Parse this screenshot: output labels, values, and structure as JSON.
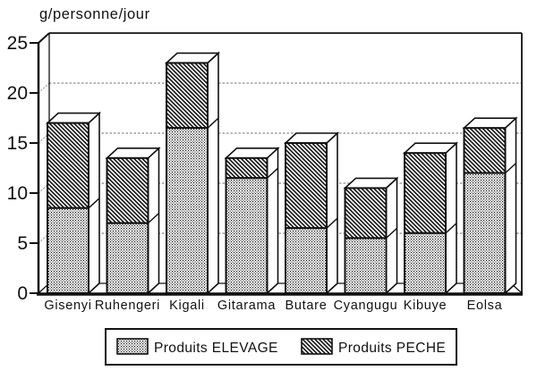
{
  "chart_data": {
    "type": "bar",
    "stacked": true,
    "style": "monochrome pseudo-3D stacked bars (scanned print)",
    "title": "g/personne/jour",
    "ylabel": "g/personne/jour",
    "categories": [
      "Gisenyi",
      "Ruhengeri",
      "Kigali",
      "Gitarama",
      "Butare",
      "Cyangugu",
      "Kibuye",
      "Eolsa"
    ],
    "series": [
      {
        "name": "Produits ELEVAGE",
        "pattern": "fine-dots",
        "values": [
          8.5,
          7,
          16.5,
          11.5,
          6.5,
          5.5,
          6,
          12
        ]
      },
      {
        "name": "Produits PECHE",
        "pattern": "diagonal-hatch",
        "values": [
          8.5,
          6.5,
          6.5,
          2,
          8.5,
          5,
          8,
          4.5
        ]
      }
    ],
    "stack_totals": [
      17,
      13.5,
      23,
      13.5,
      15,
      10.5,
      14,
      16.5
    ],
    "ylim": [
      0,
      25
    ],
    "yticks": [
      0,
      5,
      10,
      15,
      20,
      25
    ],
    "grid": true,
    "legend_position": "bottom",
    "colors": {
      "ink": "#111111",
      "background": "#ffffff",
      "gridline": "#8a8a8a"
    }
  }
}
